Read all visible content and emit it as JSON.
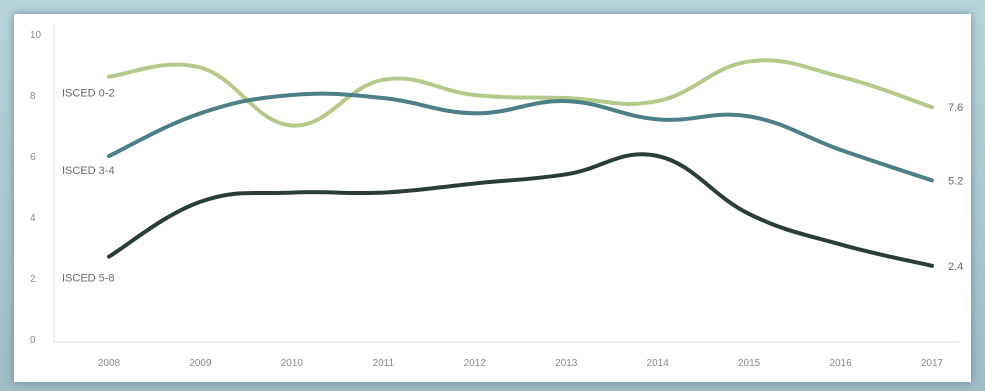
{
  "chart_data": {
    "type": "line",
    "title": "",
    "xlabel": "",
    "ylabel": "",
    "x": [
      "2008",
      "2009",
      "2010",
      "2011",
      "2012",
      "2013",
      "2014",
      "2015",
      "2016",
      "2017"
    ],
    "ylim": [
      0,
      10
    ],
    "yticks": [
      "0",
      "2",
      "4",
      "6",
      "8",
      "10"
    ],
    "grid": false,
    "series": [
      {
        "name": "ISCED 0-2",
        "color": "#b5c98a",
        "values": [
          8.6,
          8.9,
          7.0,
          8.5,
          8.0,
          7.9,
          7.8,
          9.1,
          8.6,
          7.6
        ],
        "end_label": "7.6"
      },
      {
        "name": "ISCED 3-4",
        "color": "#4d7f86",
        "values": [
          6.0,
          7.4,
          8.0,
          7.9,
          7.4,
          7.8,
          7.2,
          7.3,
          6.2,
          5.2
        ],
        "end_label": "5.2"
      },
      {
        "name": "ISCED 5-8",
        "color": "#2a3d3a",
        "values": [
          2.7,
          4.5,
          4.8,
          4.8,
          5.1,
          5.4,
          6.0,
          4.1,
          3.1,
          2.4
        ],
        "end_label": "2.4"
      }
    ]
  }
}
